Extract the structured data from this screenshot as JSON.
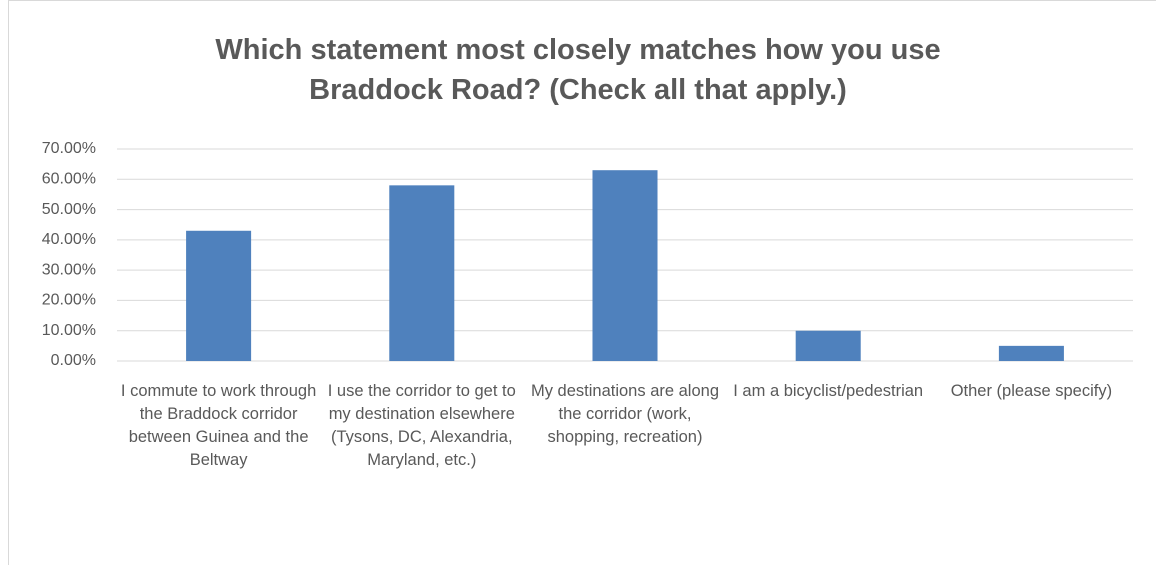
{
  "chart_data": {
    "type": "bar",
    "title": "Which statement most closely matches how you use Braddock Road? (Check all that apply.)",
    "categories": [
      "I commute to work through the Braddock corridor between Guinea and the Beltway",
      "I use the corridor to get to my destination elsewhere (Tysons, DC, Alexandria, Maryland, etc.)",
      "My destinations are along the corridor (work, shopping, recreation)",
      "I am a bicyclist/pedestrian",
      "Other (please specify)"
    ],
    "values": [
      43,
      58,
      63,
      10,
      5
    ],
    "color": "#4f81bd",
    "ylim": [
      0,
      70
    ],
    "yticks": [
      {
        "value": 0,
        "label": "0.00%"
      },
      {
        "value": 10,
        "label": "10.00%"
      },
      {
        "value": 20,
        "label": "20.00%"
      },
      {
        "value": 30,
        "label": "30.00%"
      },
      {
        "value": 40,
        "label": "40.00%"
      },
      {
        "value": 50,
        "label": "50.00%"
      },
      {
        "value": 60,
        "label": "60.00%"
      },
      {
        "value": 70,
        "label": "70.00%"
      }
    ],
    "grid": true
  }
}
